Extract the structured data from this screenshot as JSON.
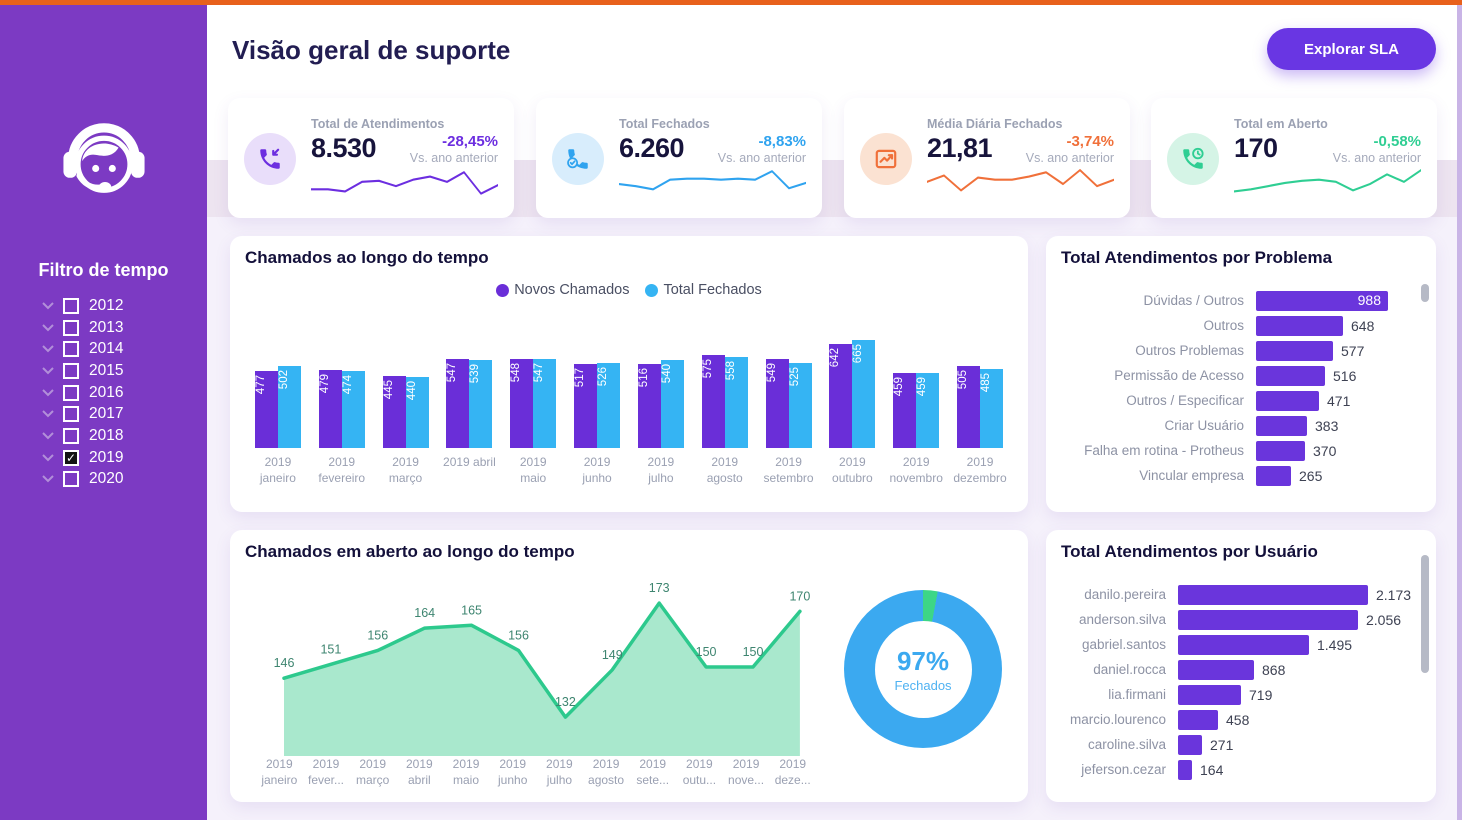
{
  "page": {
    "title": "Visão geral de suporte",
    "explore_button": "Explorar SLA"
  },
  "sidebar": {
    "filter_title": "Filtro de tempo",
    "years": [
      {
        "label": "2012",
        "checked": false
      },
      {
        "label": "2013",
        "checked": false
      },
      {
        "label": "2014",
        "checked": false
      },
      {
        "label": "2015",
        "checked": false
      },
      {
        "label": "2016",
        "checked": false
      },
      {
        "label": "2017",
        "checked": false
      },
      {
        "label": "2018",
        "checked": false
      },
      {
        "label": "2019",
        "checked": true
      },
      {
        "label": "2020",
        "checked": false
      }
    ]
  },
  "kpis": [
    {
      "label": "Total de Atendimentos",
      "value": "8.530",
      "delta": "-28,45%",
      "delta_note": "Vs. ano anterior",
      "color": "#6C2EE0",
      "icon": "phone-incoming-icon",
      "icon_bg": "#E9DEFA",
      "spark": [
        20,
        20,
        22,
        13,
        12,
        17,
        11,
        8,
        13,
        4,
        24,
        16
      ]
    },
    {
      "label": "Total Fechados",
      "value": "6.260",
      "delta": "-8,83%",
      "delta_note": "Vs. ano anterior",
      "color": "#2FA3EF",
      "icon": "phone-check-icon",
      "icon_bg": "#D8EDFC",
      "spark": [
        15,
        17,
        20,
        11,
        10,
        10,
        11,
        10,
        11,
        3,
        19,
        14
      ]
    },
    {
      "label": "Média Diária Fechados",
      "value": "21,81",
      "delta": "-3,74%",
      "delta_note": "Vs. ano anterior",
      "color": "#F0703A",
      "icon": "trend-chart-icon",
      "icon_bg": "#FBE2D2",
      "spark": [
        13,
        7,
        21,
        9,
        11,
        11,
        8,
        4,
        15,
        2,
        17,
        11
      ]
    },
    {
      "label": "Total em Aberto",
      "value": "170",
      "delta": "-0,58%",
      "delta_note": "Vs. ano anterior",
      "color": "#2FCE93",
      "icon": "phone-clock-icon",
      "icon_bg": "#D5F4E6",
      "spark": [
        22,
        20,
        17,
        14,
        12,
        11,
        13,
        21,
        15,
        6,
        13,
        2
      ]
    }
  ],
  "chart_data": [
    {
      "type": "bar",
      "title": "Chamados ao longo do tempo",
      "categories": [
        "2019 janeiro",
        "2019 fevereiro",
        "2019 março",
        "2019 abril",
        "2019 maio",
        "2019 junho",
        "2019 julho",
        "2019 agosto",
        "2019 setembro",
        "2019 outubro",
        "2019 novembro",
        "2019 dezembro"
      ],
      "x_labels": [
        {
          "top": "2019",
          "bottom": "janeiro"
        },
        {
          "top": "2019",
          "bottom": "fevereiro"
        },
        {
          "top": "2019",
          "bottom": "março"
        },
        {
          "top": "2019 abril",
          "bottom": ""
        },
        {
          "top": "2019",
          "bottom": "maio"
        },
        {
          "top": "2019",
          "bottom": "junho"
        },
        {
          "top": "2019",
          "bottom": "julho"
        },
        {
          "top": "2019",
          "bottom": "agosto"
        },
        {
          "top": "2019",
          "bottom": "setembro"
        },
        {
          "top": "2019",
          "bottom": "outubro"
        },
        {
          "top": "2019",
          "bottom": "novembro"
        },
        {
          "top": "2019",
          "bottom": "dezembro"
        }
      ],
      "series": [
        {
          "name": "Novos Chamados",
          "color": "#6A2ED8",
          "values": [
            477,
            479,
            445,
            547,
            548,
            517,
            516,
            575,
            549,
            642,
            459,
            505
          ]
        },
        {
          "name": "Total Fechados",
          "color": "#35B4F3",
          "values": [
            502,
            474,
            440,
            539,
            547,
            526,
            540,
            558,
            525,
            665,
            459,
            485
          ]
        }
      ],
      "legend_position": "top",
      "ylim": [
        0,
        700
      ],
      "grid": false
    },
    {
      "type": "bar",
      "orientation": "horizontal",
      "title": "Total Atendimentos por Problema",
      "categories": [
        "Dúvidas / Outros",
        "Outros",
        "Outros Problemas",
        "Permissão de Acesso",
        "Outros / Especificar",
        "Criar Usuário",
        "Falha em rotina - Protheus",
        "Vincular empresa"
      ],
      "values": [
        988,
        648,
        577,
        516,
        471,
        383,
        370,
        265
      ],
      "value_labels": [
        "988",
        "648",
        "577",
        "516",
        "471",
        "383",
        "370",
        "265"
      ],
      "color": "#6A35DC",
      "first_value_inside": true
    },
    {
      "type": "area",
      "title": "Chamados em aberto ao longo do tempo",
      "categories": [
        "2019 janeiro",
        "2019 fevereiro",
        "2019 março",
        "2019 abril",
        "2019 maio",
        "2019 junho",
        "2019 julho",
        "2019 agosto",
        "2019 setembro",
        "2019 outubro",
        "2019 novembro",
        "2019 dezembro"
      ],
      "x_labels": [
        {
          "top": "2019",
          "bottom": "janeiro"
        },
        {
          "top": "2019",
          "bottom": "fever..."
        },
        {
          "top": "2019",
          "bottom": "março"
        },
        {
          "top": "2019",
          "bottom": "abril"
        },
        {
          "top": "2019",
          "bottom": "maio"
        },
        {
          "top": "2019",
          "bottom": "junho"
        },
        {
          "top": "2019",
          "bottom": "julho"
        },
        {
          "top": "2019",
          "bottom": "agosto"
        },
        {
          "top": "2019",
          "bottom": "sete..."
        },
        {
          "top": "2019",
          "bottom": "outu..."
        },
        {
          "top": "2019",
          "bottom": "nove..."
        },
        {
          "top": "2019",
          "bottom": "deze..."
        }
      ],
      "values": [
        146,
        151,
        156,
        164,
        165,
        156,
        132,
        149,
        173,
        150,
        150,
        170
      ],
      "line_color": "#2DC98D",
      "fill_color": "#A9E8CD",
      "label_color": "#3E8570",
      "grid": false
    },
    {
      "type": "pie",
      "center_value": "97%",
      "center_label": "Fechados",
      "slices": [
        {
          "label": "Fechados",
          "pct": 97,
          "color": "#3BA9F0"
        },
        {
          "label": "",
          "pct": 3,
          "color": "#3DD686"
        }
      ]
    },
    {
      "type": "bar",
      "orientation": "horizontal",
      "title": "Total Atendimentos por Usuário",
      "categories": [
        "danilo.pereira",
        "anderson.silva",
        "gabriel.santos",
        "daniel.rocca",
        "lia.firmani",
        "marcio.lourenco",
        "caroline.silva",
        "jeferson.cezar"
      ],
      "values": [
        2173,
        2056,
        1495,
        868,
        719,
        458,
        271,
        164
      ],
      "value_labels": [
        "2.173",
        "2.056",
        "1.495",
        "868",
        "719",
        "458",
        "271",
        "164"
      ],
      "color": "#6A35DC",
      "first_value_inside": false
    }
  ]
}
